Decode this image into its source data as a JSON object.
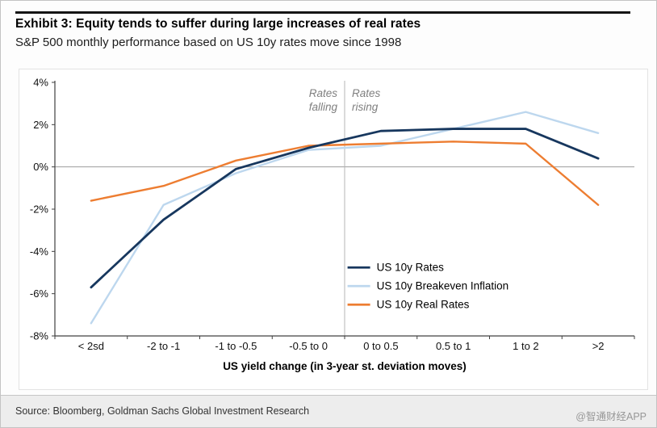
{
  "header": {
    "title": "Exhibit 3: Equity tends to suffer during large increases of real rates",
    "subtitle": "S&P 500 monthly performance based on US 10y rates move since 1998"
  },
  "chart_data": {
    "type": "line",
    "title": "",
    "categories": [
      "< 2sd",
      "-2 to -1",
      "-1 to -0.5",
      "-0.5 to 0",
      "0 to 0.5",
      "0.5 to 1",
      "1 to 2",
      ">2"
    ],
    "series": [
      {
        "name": "US 10y Rates",
        "color": "#17375e",
        "values": [
          -5.7,
          -2.5,
          -0.1,
          0.9,
          1.7,
          1.8,
          1.8,
          0.4
        ]
      },
      {
        "name": "US 10y Breakeven Inflation",
        "color": "#bdd7ee",
        "values": [
          -7.4,
          -1.8,
          -0.3,
          0.8,
          1.0,
          1.8,
          2.6,
          1.6
        ]
      },
      {
        "name": "US 10y Real Rates",
        "color": "#ed7d31",
        "values": [
          -1.6,
          -0.9,
          0.3,
          1.0,
          1.1,
          1.2,
          1.1,
          -1.8
        ]
      }
    ],
    "xlabel": "US yield change (in 3-year st. deviation moves)",
    "ylabel": "",
    "ylim": [
      -8,
      4
    ],
    "ytick_step": 2,
    "ytick_suffix": "%",
    "grid": false,
    "zero_line": true,
    "divider_index": 4,
    "annotations": [
      {
        "lines": [
          "Rates",
          "falling"
        ],
        "side": "left"
      },
      {
        "lines": [
          "Rates",
          "rising"
        ],
        "side": "right"
      }
    ],
    "legend_position": "center-right-inside"
  },
  "footer": {
    "source": "Source: Bloomberg, Goldman Sachs Global Investment Research",
    "watermark": "@智通财经APP"
  }
}
